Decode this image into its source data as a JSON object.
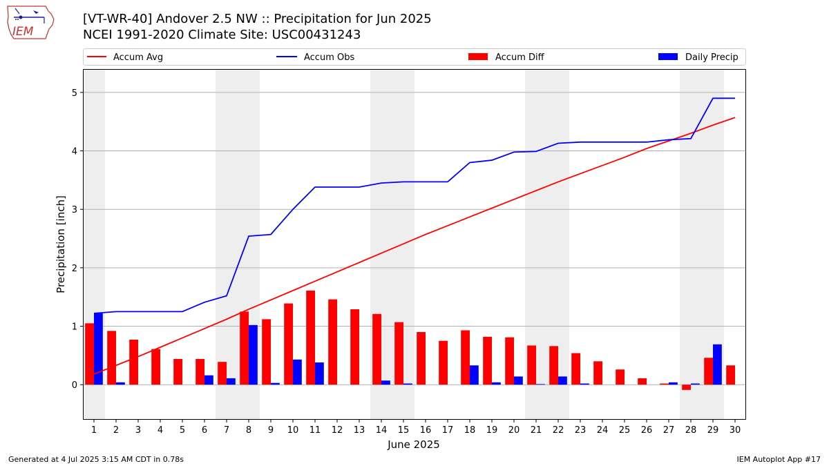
{
  "header": {
    "title_line1": "[VT-WR-40] Andover 2.5 NW :: Precipitation for Jun 2025",
    "title_line2": "NCEI 1991-2020 Climate Site: USC00431243"
  },
  "logo": {
    "text": "IEM",
    "icon": "iem-iowa-logo"
  },
  "footer": {
    "generated": "Generated at 4 Jul 2025 3:15 AM CDT in 0.78s",
    "app": "IEM Autoplot App #17"
  },
  "colors": {
    "accum_avg": "#ff0000",
    "accum_obs": "#0000ff",
    "accum_diff": "#ff0000",
    "daily_precip": "#0000ff",
    "weekend_shade": "#eeeeee",
    "grid": "#b0b0b0"
  },
  "chart_data": {
    "type": "bar",
    "xlabel": "June 2025",
    "ylabel": "Precipitation [inch]",
    "ylim": [
      -0.6,
      5.4
    ],
    "yticks": [
      0,
      1,
      2,
      3,
      4,
      5
    ],
    "grid": "horizontal",
    "legend_position": "top",
    "categories": [
      1,
      2,
      3,
      4,
      5,
      6,
      7,
      8,
      9,
      10,
      11,
      12,
      13,
      14,
      15,
      16,
      17,
      18,
      19,
      20,
      21,
      22,
      23,
      24,
      25,
      26,
      27,
      28,
      29,
      30
    ],
    "shaded_days": [
      1,
      7,
      8,
      14,
      15,
      21,
      22,
      28,
      29
    ],
    "series": [
      {
        "name": "Accum Avg",
        "kind": "line",
        "values": [
          0.18,
          0.33,
          0.48,
          0.64,
          0.8,
          0.96,
          1.12,
          1.29,
          1.45,
          1.61,
          1.77,
          1.93,
          2.09,
          2.25,
          2.41,
          2.57,
          2.72,
          2.87,
          3.02,
          3.17,
          3.32,
          3.47,
          3.61,
          3.75,
          3.89,
          4.04,
          4.17,
          4.3,
          4.44,
          4.57
        ]
      },
      {
        "name": "Accum Obs",
        "kind": "line",
        "values": [
          1.22,
          1.25,
          1.25,
          1.25,
          1.25,
          1.41,
          1.52,
          2.54,
          2.57,
          3.0,
          3.38,
          3.38,
          3.38,
          3.45,
          3.47,
          3.47,
          3.47,
          3.8,
          3.84,
          3.98,
          3.99,
          4.13,
          4.15,
          4.15,
          4.15,
          4.15,
          4.19,
          4.21,
          4.9,
          4.9
        ]
      },
      {
        "name": "Accum Diff",
        "kind": "bar",
        "values": [
          1.05,
          0.92,
          0.77,
          0.61,
          0.44,
          0.44,
          0.39,
          1.25,
          1.12,
          1.39,
          1.61,
          1.46,
          1.29,
          1.21,
          1.07,
          0.9,
          0.75,
          0.93,
          0.82,
          0.81,
          0.67,
          0.66,
          0.54,
          0.4,
          0.26,
          0.11,
          0.02,
          -0.09,
          0.46,
          0.33
        ]
      },
      {
        "name": "Daily Precip",
        "kind": "bar",
        "values": [
          1.22,
          0.04,
          0,
          0,
          0,
          0.16,
          0.11,
          1.02,
          0.03,
          0.43,
          0.38,
          0,
          0,
          0.07,
          0.02,
          0,
          0,
          0.33,
          0.04,
          0.14,
          0.01,
          0.14,
          0.02,
          0,
          0,
          0,
          0.04,
          0.02,
          0.69,
          0
        ]
      }
    ]
  }
}
